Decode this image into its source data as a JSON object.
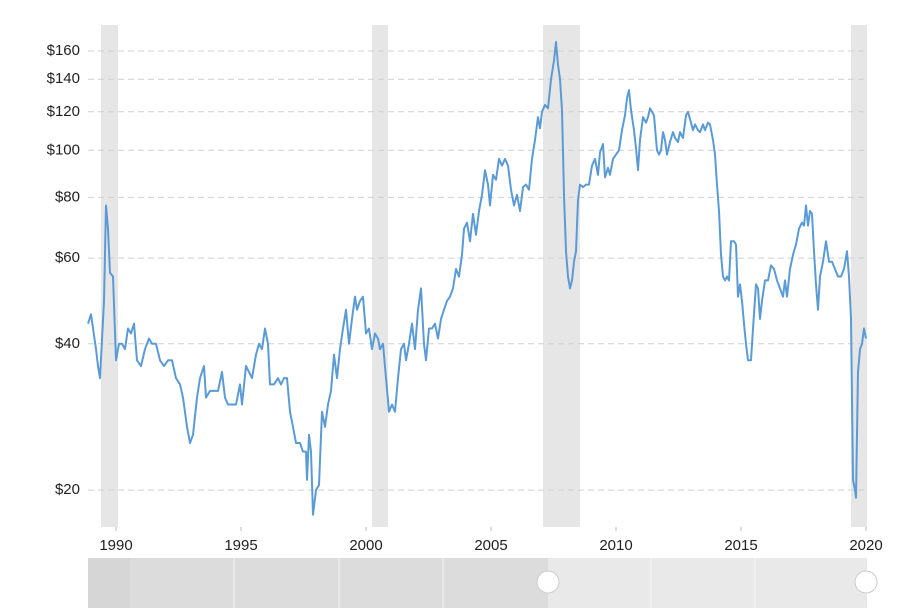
{
  "chart_data": {
    "type": "line",
    "log_y": true,
    "grid": true,
    "band_color": "#e6e6e6",
    "bands": [
      [
        1989.4,
        1990.08
      ],
      [
        2000.24,
        2000.88
      ],
      [
        2007.08,
        2008.56
      ],
      [
        2019.4,
        2020.04
      ]
    ],
    "xlim": [
      1988.88,
      2020.04
    ],
    "xticks": [
      1990,
      1995,
      2000,
      2005,
      2010,
      2015,
      2020
    ],
    "ylim": [
      16.8,
      181
    ],
    "yticks": [
      {
        "value": 20,
        "label": "$20"
      },
      {
        "value": 40,
        "label": "$40"
      },
      {
        "value": 60,
        "label": "$60"
      },
      {
        "value": 80,
        "label": "$80"
      },
      {
        "value": 100,
        "label": "$100"
      },
      {
        "value": 120,
        "label": "$120"
      },
      {
        "value": 140,
        "label": "$140"
      },
      {
        "value": 160,
        "label": "$160"
      }
    ],
    "x": [
      1988.88,
      1989.0,
      1989.2,
      1989.28,
      1989.36,
      1989.52,
      1989.6,
      1989.68,
      1989.76,
      1989.88,
      1990.0,
      1990.12,
      1990.24,
      1990.36,
      1990.48,
      1990.6,
      1990.72,
      1990.84,
      1991.0,
      1991.16,
      1991.32,
      1991.44,
      1991.6,
      1991.76,
      1991.92,
      1992.08,
      1992.24,
      1992.4,
      1992.56,
      1992.68,
      1992.84,
      1992.96,
      1993.08,
      1993.24,
      1993.36,
      1993.52,
      1993.6,
      1993.76,
      1993.92,
      1994.08,
      1994.24,
      1994.36,
      1994.48,
      1994.64,
      1994.8,
      1994.96,
      1995.04,
      1995.2,
      1995.32,
      1995.44,
      1995.6,
      1995.72,
      1995.84,
      1995.96,
      1996.08,
      1996.16,
      1996.32,
      1996.48,
      1996.6,
      1996.72,
      1996.84,
      1996.96,
      1997.08,
      1997.2,
      1997.36,
      1997.48,
      1997.6,
      1997.64,
      1997.72,
      1997.8,
      1997.88,
      1998.0,
      1998.12,
      1998.24,
      1998.36,
      1998.48,
      1998.6,
      1998.72,
      1998.84,
      1998.96,
      1999.08,
      1999.2,
      1999.32,
      1999.44,
      1999.56,
      1999.64,
      1999.76,
      1999.88,
      2000.0,
      2000.12,
      2000.24,
      2000.36,
      2000.48,
      2000.56,
      2000.68,
      2000.8,
      2000.92,
      2001.04,
      2001.16,
      2001.28,
      2001.4,
      2001.52,
      2001.6,
      2001.72,
      2001.84,
      2001.96,
      2002.08,
      2002.2,
      2002.32,
      2002.4,
      2002.52,
      2002.64,
      2002.76,
      2002.88,
      2003.0,
      2003.12,
      2003.24,
      2003.36,
      2003.48,
      2003.6,
      2003.72,
      2003.84,
      2003.92,
      2004.04,
      2004.16,
      2004.28,
      2004.4,
      2004.52,
      2004.64,
      2004.76,
      2004.88,
      2004.96,
      2005.08,
      2005.2,
      2005.32,
      2005.44,
      2005.56,
      2005.68,
      2005.8,
      2005.92,
      2006.04,
      2006.16,
      2006.28,
      2006.4,
      2006.52,
      2006.64,
      2006.76,
      2006.88,
      2006.96,
      2007.04,
      2007.16,
      2007.28,
      2007.4,
      2007.52,
      2007.6,
      2007.68,
      2007.76,
      2007.84,
      2007.92,
      2008.0,
      2008.08,
      2008.16,
      2008.24,
      2008.32,
      2008.4,
      2008.48,
      2008.56,
      2008.68,
      2008.8,
      2008.92,
      2009.04,
      2009.16,
      2009.28,
      2009.36,
      2009.48,
      2009.56,
      2009.68,
      2009.76,
      2009.88,
      2010.0,
      2010.12,
      2010.24,
      2010.36,
      2010.44,
      2010.52,
      2010.6,
      2010.72,
      2010.8,
      2010.88,
      2010.96,
      2011.08,
      2011.2,
      2011.28,
      2011.36,
      2011.44,
      2011.52,
      2011.64,
      2011.72,
      2011.8,
      2011.88,
      2011.96,
      2012.04,
      2012.16,
      2012.28,
      2012.36,
      2012.48,
      2012.56,
      2012.68,
      2012.8,
      2012.88,
      2012.96,
      2013.08,
      2013.16,
      2013.28,
      2013.36,
      2013.48,
      2013.56,
      2013.68,
      2013.76,
      2013.88,
      2013.96,
      2014.04,
      2014.12,
      2014.2,
      2014.28,
      2014.36,
      2014.44,
      2014.52,
      2014.6,
      2014.72,
      2014.8,
      2014.88,
      2014.96,
      2015.04,
      2015.12,
      2015.2,
      2015.28,
      2015.4,
      2015.48,
      2015.6,
      2015.68,
      2015.76,
      2015.84,
      2015.96,
      2016.08,
      2016.2,
      2016.32,
      2016.44,
      2016.56,
      2016.68,
      2016.76,
      2016.84,
      2016.96,
      2017.08,
      2017.2,
      2017.32,
      2017.44,
      2017.52,
      2017.6,
      2017.68,
      2017.76,
      2017.84,
      2017.92,
      2018.0,
      2018.08,
      2018.16,
      2018.28,
      2018.4,
      2018.52,
      2018.64,
      2018.76,
      2018.88,
      2019.0,
      2019.12,
      2019.24,
      2019.32,
      2019.4,
      2019.48,
      2019.56,
      2019.6,
      2019.68,
      2019.76,
      2019.84,
      2019.92,
      2020.0
    ],
    "series": [
      {
        "color": "#5b9bd5",
        "values": [
          44,
          46,
          39,
          36,
          34,
          49,
          77,
          69,
          56,
          55,
          37,
          40,
          40,
          39,
          43,
          42,
          44,
          37,
          36,
          39,
          41,
          40,
          40,
          37,
          36,
          37,
          37,
          34,
          33,
          31,
          27,
          25,
          26,
          31,
          34,
          36,
          31,
          32,
          32,
          32,
          35,
          31,
          30,
          30,
          30,
          33,
          30,
          36,
          35,
          34,
          38,
          40,
          39,
          43,
          40,
          33,
          33,
          34,
          33,
          34,
          34,
          29,
          27,
          25,
          25,
          24,
          24,
          21,
          26,
          24,
          17.8,
          20,
          20.5,
          29,
          27,
          30,
          32,
          38,
          34,
          39,
          43,
          47,
          40,
          45,
          50,
          47,
          49,
          50,
          42,
          43,
          39,
          42,
          41,
          39,
          40,
          34,
          29,
          30,
          29,
          34,
          39,
          40,
          37,
          40,
          44,
          39,
          47,
          52,
          40,
          37,
          43,
          43,
          44,
          41,
          45,
          47,
          49,
          50,
          52,
          57,
          55,
          61,
          69,
          71,
          65,
          74,
          67,
          75,
          81,
          91,
          85,
          77,
          89,
          87,
          96,
          93,
          96,
          93,
          83,
          77,
          81,
          75,
          84,
          85,
          83,
          96,
          105,
          117,
          111,
          120,
          124,
          122,
          140,
          153,
          167,
          150,
          140,
          121,
          81,
          62,
          55,
          52,
          54,
          59,
          62,
          79,
          85,
          84,
          85,
          85,
          93,
          96,
          89,
          99,
          103,
          88,
          92,
          89,
          96,
          98,
          100,
          110,
          118,
          128,
          133,
          121,
          110,
          101,
          91,
          105,
          117,
          114,
          117,
          122,
          120,
          118,
          100,
          98,
          100,
          109,
          105,
          98,
          104,
          109,
          106,
          104,
          109,
          106,
          118,
          120,
          116,
          110,
          113,
          110,
          109,
          113,
          110,
          114,
          113,
          105,
          98,
          85,
          75,
          61,
          55,
          54,
          55,
          54,
          65,
          65,
          64,
          50,
          53,
          49,
          44,
          40,
          37,
          37,
          43,
          53,
          52,
          45,
          49,
          54,
          54,
          58,
          57,
          54,
          52,
          50,
          54,
          50,
          57,
          61,
          64,
          69,
          71,
          70,
          77,
          70,
          75,
          74,
          62,
          53,
          47,
          55,
          59,
          65,
          59,
          59,
          57,
          55,
          55,
          57,
          62,
          55,
          45,
          21,
          20,
          19.3,
          35,
          39,
          40,
          43,
          41
        ]
      }
    ]
  }
}
